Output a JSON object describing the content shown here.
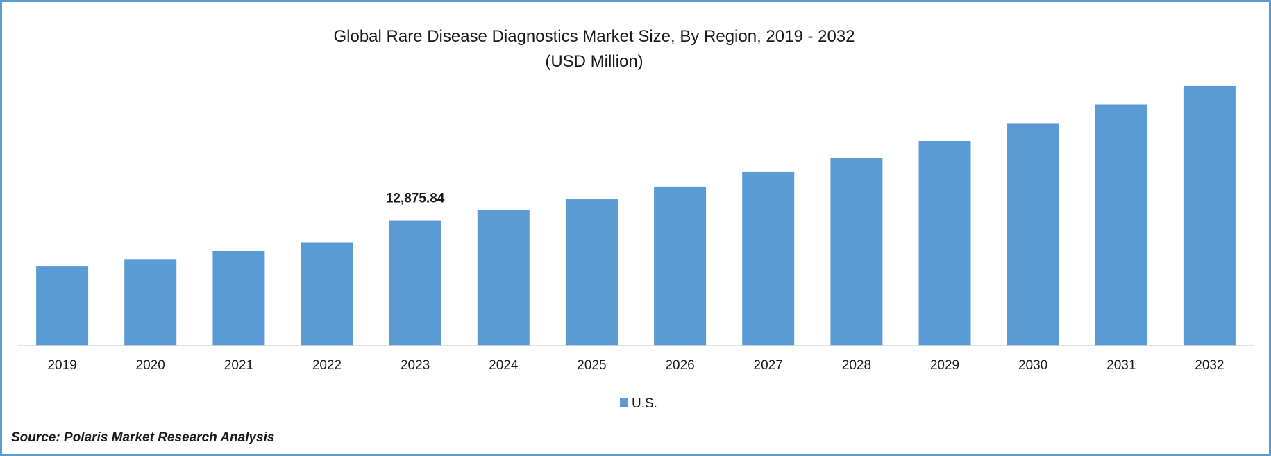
{
  "chart_data": {
    "type": "bar",
    "title": "Global Rare Disease Diagnostics Market Size, By Region, 2019 - 2032",
    "subtitle": "(USD Million)",
    "categories": [
      "2019",
      "2020",
      "2021",
      "2022",
      "2023",
      "2024",
      "2025",
      "2026",
      "2027",
      "2028",
      "2029",
      "2030",
      "2031",
      "2032"
    ],
    "series": [
      {
        "name": "U.S.",
        "color": "#5b9bd5",
        "values": [
          8200,
          8900,
          9750,
          10600,
          12875.84,
          13950,
          15070,
          16350,
          17850,
          19300,
          21050,
          22880,
          24800,
          26700
        ]
      }
    ],
    "data_labels": [
      {
        "category": "2023",
        "text": "12,875.84"
      }
    ],
    "ylim": [
      0,
      31400
    ],
    "y_axis_visible": false,
    "grid": false,
    "legend_position": "bottom-center"
  },
  "source": "Source: Polaris Market Research Analysis"
}
